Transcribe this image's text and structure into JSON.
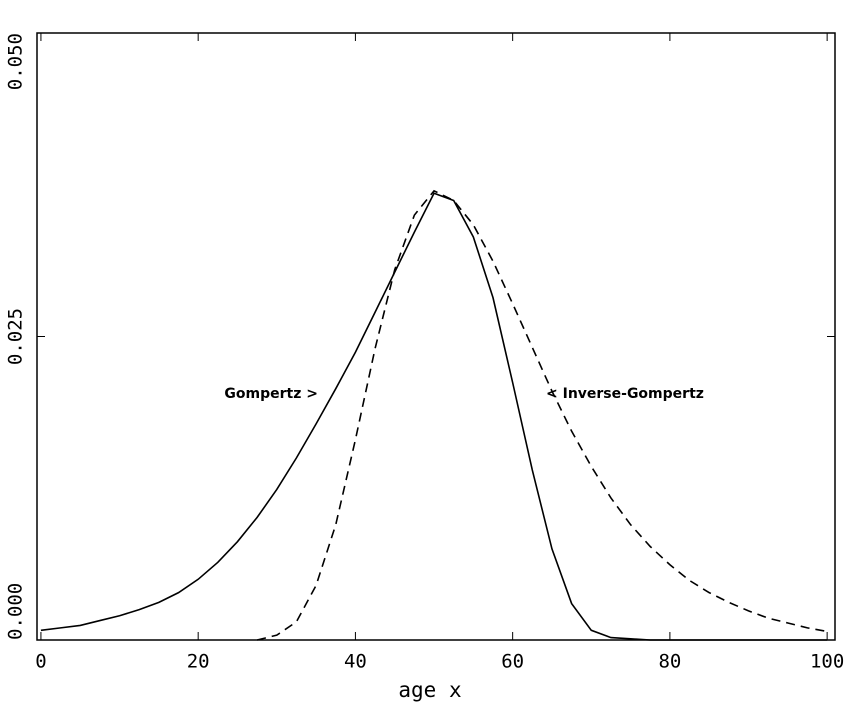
{
  "chart_data": {
    "type": "line",
    "x_label": "age x",
    "x": [
      0,
      2.5,
      5,
      7.5,
      10,
      12.5,
      15,
      17.5,
      20,
      22.5,
      25,
      27.5,
      30,
      32.5,
      35,
      37.5,
      40,
      42.5,
      45,
      47.5,
      50,
      52.5,
      55,
      57.5,
      60,
      62.5,
      65,
      67.5,
      70,
      72.5,
      75,
      77.5,
      80,
      82.5,
      85,
      87.5,
      90,
      92.5,
      95,
      97.5,
      100
    ],
    "series": [
      {
        "name": "Gompertz",
        "color": "#000000",
        "dash": false,
        "values": [
          0.0008,
          0.001,
          0.0012,
          0.0016,
          0.002,
          0.0025,
          0.0031,
          0.0039,
          0.005,
          0.0064,
          0.0081,
          0.0101,
          0.0124,
          0.015,
          0.0178,
          0.0207,
          0.0237,
          0.027,
          0.0303,
          0.0336,
          0.0368,
          0.0362,
          0.0332,
          0.0282,
          0.0212,
          0.014,
          0.0075,
          0.003,
          0.0008,
          0.0002,
          0.0001,
          0,
          0,
          0,
          0,
          0,
          0,
          0,
          0,
          0,
          0
        ]
      },
      {
        "name": "Inverse-Gompertz",
        "color": "#000000",
        "dash": true,
        "values": [
          null,
          null,
          null,
          null,
          null,
          null,
          null,
          null,
          null,
          null,
          null,
          0.0,
          0.0004,
          0.0015,
          0.0045,
          0.0095,
          0.0165,
          0.024,
          0.0305,
          0.035,
          0.037,
          0.0362,
          0.0342,
          0.0312,
          0.0277,
          0.0241,
          0.0205,
          0.0172,
          0.0143,
          0.0117,
          0.0095,
          0.0077,
          0.0062,
          0.0049,
          0.0039,
          0.0031,
          0.0024,
          0.0018,
          0.0014,
          0.001,
          0.0007
        ]
      }
    ],
    "annotations": [
      "Gompertz >",
      "< Inverse-Gompertz"
    ],
    "xlim": [
      -0.5,
      101
    ],
    "xticks": [
      0,
      20,
      40,
      60,
      80,
      100
    ],
    "ylim": [
      0,
      0.05
    ],
    "yticks": [
      {
        "value": 0,
        "label": "0.000"
      },
      {
        "value": 0.025,
        "label": "0.025"
      },
      {
        "value": 0.05,
        "label": "0.050"
      }
    ],
    "grid": false
  }
}
